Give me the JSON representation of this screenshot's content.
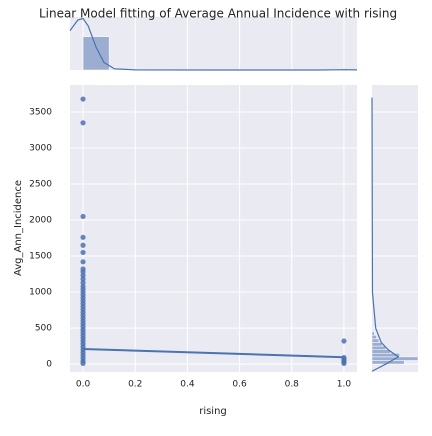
{
  "chart_data": {
    "type": "scatter",
    "title": "Linear Model fitting of Average Annual Incidence with rising",
    "xlabel": "rising",
    "ylabel": "Avg_Ann_Incidence",
    "color": "#4c72b0",
    "grid": true,
    "xlim": [
      -0.05,
      1.05
    ],
    "ylim": [
      -110,
      3875
    ],
    "xticks": [
      {
        "value": 0,
        "label": "0.0"
      },
      {
        "value": 0.2,
        "label": "0.2"
      },
      {
        "value": 0.4,
        "label": "0.4"
      },
      {
        "value": 0.6,
        "label": "0.6"
      },
      {
        "value": 0.8,
        "label": "0.8"
      },
      {
        "value": 1,
        "label": "1.0"
      }
    ],
    "yticks": [
      0,
      500,
      1000,
      1500,
      2000,
      2500,
      3000,
      3500
    ],
    "points": {
      "x": [
        0,
        0,
        0,
        0,
        0,
        0,
        0,
        0,
        0,
        0,
        0,
        0,
        0,
        0,
        0,
        0,
        0,
        0,
        0,
        0,
        0,
        0,
        0,
        0,
        0,
        0,
        0,
        0,
        0,
        0,
        0,
        0,
        0,
        0,
        0,
        0,
        0,
        0,
        0,
        0,
        1,
        1,
        1,
        1,
        1,
        1
      ],
      "y": [
        3680,
        3350,
        2050,
        1760,
        1650,
        1550,
        1420,
        1320,
        1280,
        1230,
        1180,
        1130,
        1080,
        1040,
        1000,
        960,
        920,
        880,
        840,
        800,
        760,
        720,
        680,
        640,
        600,
        560,
        520,
        480,
        440,
        400,
        360,
        320,
        280,
        240,
        200,
        160,
        120,
        80,
        40,
        10,
        320,
        90,
        70,
        50,
        30,
        10
      ]
    },
    "regression": {
      "x": [
        0,
        1
      ],
      "y": [
        210,
        95
      ]
    },
    "top_hist": {
      "bins": [
        0,
        0.1,
        0.2,
        0.3,
        0.4,
        0.5,
        0.6,
        0.7,
        0.8,
        0.9,
        1.0
      ],
      "counts": [
        2200,
        0,
        0,
        0,
        0,
        0,
        0,
        0,
        0,
        30
      ],
      "ylim": [
        0,
        3500
      ],
      "kde_x": [
        -0.05,
        -0.02,
        0,
        0.02,
        0.05,
        0.08,
        0.12,
        0.2,
        0.5,
        0.9,
        1.0,
        1.05
      ],
      "kde_y": [
        2600,
        3300,
        3400,
        2900,
        1500,
        500,
        80,
        10,
        0,
        0,
        20,
        10
      ]
    },
    "right_hist": {
      "bins": [
        0,
        50,
        100,
        150,
        200,
        250,
        300,
        350,
        400,
        450
      ],
      "counts": [
        70,
        100,
        60,
        40,
        30,
        22,
        15,
        10,
        5
      ],
      "xlim": [
        0,
        100
      ],
      "kde_y": [
        -100,
        0,
        100,
        200,
        300,
        500,
        1000,
        3700
      ],
      "kde_x": [
        0,
        30,
        57,
        35,
        20,
        8,
        1,
        0
      ]
    }
  }
}
